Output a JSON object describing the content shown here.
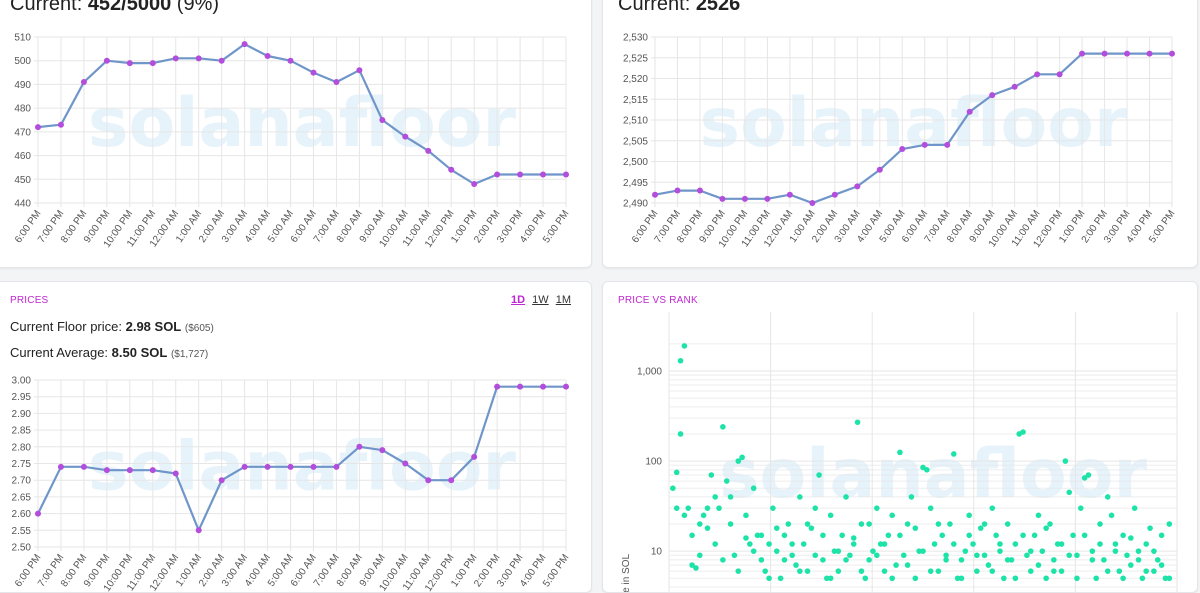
{
  "cards": {
    "listed": {
      "current_label": "Current:",
      "current_value": "452/5000",
      "current_extra": "(9%)"
    },
    "holders": {
      "current_label": "Current:",
      "current_value": "2526"
    },
    "prices": {
      "section_label": "PRICES",
      "range_tabs": [
        "1D",
        "1W",
        "1M"
      ],
      "active_range": "1D",
      "floor_label": "Current Floor price:",
      "floor_value": "2.98 SOL",
      "floor_usd": "($605)",
      "avg_label": "Current Average:",
      "avg_value": "8.50 SOL",
      "avg_usd": "($1,727)"
    },
    "rank": {
      "section_label": "PRICE VS RANK",
      "ylabel": "Price in SOL"
    }
  },
  "watermark": "solanafloor",
  "colors": {
    "line": "#6f95c9",
    "point": "#b34ddb",
    "scatter": "#1ee3a8",
    "accent": "#c026d3"
  },
  "chart_data": [
    {
      "type": "line",
      "x": [
        "6:00 PM",
        "7:00 PM",
        "8:00 PM",
        "9:00 PM",
        "10:00 PM",
        "11:00 PM",
        "12:00 AM",
        "1:00 AM",
        "2:00 AM",
        "3:00 AM",
        "4:00 AM",
        "5:00 AM",
        "6:00 AM",
        "7:00 AM",
        "8:00 AM",
        "9:00 AM",
        "10:00 AM",
        "11:00 AM",
        "12:00 PM",
        "1:00 PM",
        "2:00 PM",
        "3:00 PM",
        "4:00 PM",
        "5:00 PM"
      ],
      "values": [
        472,
        473,
        491,
        500,
        499,
        499,
        501,
        501,
        500,
        507,
        502,
        500,
        495,
        491,
        496,
        475,
        468,
        462,
        454,
        448,
        452,
        452,
        452,
        452
      ],
      "ylim": [
        440,
        510
      ],
      "yticks": [
        "440",
        "450",
        "460",
        "470",
        "480",
        "490",
        "500",
        "510"
      ],
      "grid": true
    },
    {
      "type": "line",
      "x": [
        "6:00 PM",
        "7:00 PM",
        "8:00 PM",
        "9:00 PM",
        "10:00 PM",
        "11:00 PM",
        "12:00 AM",
        "1:00 AM",
        "2:00 AM",
        "3:00 AM",
        "4:00 AM",
        "5:00 AM",
        "6:00 AM",
        "7:00 AM",
        "8:00 AM",
        "9:00 AM",
        "10:00 AM",
        "11:00 AM",
        "12:00 PM",
        "1:00 PM",
        "2:00 PM",
        "3:00 PM",
        "4:00 PM",
        "5:00 PM"
      ],
      "values": [
        2492,
        2493,
        2493,
        2491,
        2491,
        2491,
        2492,
        2490,
        2492,
        2494,
        2498,
        2503,
        2504,
        2504,
        2512,
        2516,
        2518,
        2521,
        2521,
        2526,
        2526,
        2526,
        2526,
        2526
      ],
      "ylim": [
        2490,
        2530
      ],
      "yticks": [
        "2,490",
        "2,495",
        "2,500",
        "2,505",
        "2,510",
        "2,515",
        "2,520",
        "2,525",
        "2,530"
      ],
      "grid": true
    },
    {
      "type": "line",
      "x": [
        "6:00 PM",
        "7:00 PM",
        "8:00 PM",
        "9:00 PM",
        "10:00 PM",
        "11:00 PM",
        "12:00 AM",
        "1:00 AM",
        "2:00 AM",
        "3:00 AM",
        "4:00 AM",
        "5:00 AM",
        "6:00 AM",
        "7:00 AM",
        "8:00 AM",
        "9:00 AM",
        "10:00 AM",
        "11:00 AM",
        "12:00 PM",
        "1:00 PM",
        "2:00 PM",
        "3:00 PM",
        "4:00 PM",
        "5:00 PM"
      ],
      "values": [
        2.6,
        2.74,
        2.74,
        2.73,
        2.73,
        2.73,
        2.72,
        2.55,
        2.7,
        2.74,
        2.74,
        2.74,
        2.74,
        2.74,
        2.8,
        2.79,
        2.75,
        2.7,
        2.7,
        2.77,
        2.98,
        2.98,
        2.98,
        2.98
      ],
      "ylim": [
        2.5,
        3.0
      ],
      "yticks": [
        "2.50",
        "2.55",
        "2.60",
        "2.65",
        "2.70",
        "2.75",
        "2.80",
        "2.85",
        "2.90",
        "2.95",
        "3.00"
      ],
      "grid": true
    },
    {
      "type": "scatter",
      "ylabel": "Price in SOL",
      "yscale": "log",
      "yticks": [
        "10",
        "100",
        "1,000"
      ],
      "points": [
        [
          3,
          1300
        ],
        [
          4,
          1900
        ],
        [
          3,
          200
        ],
        [
          2,
          75
        ],
        [
          5,
          30
        ],
        [
          8,
          20
        ],
        [
          9,
          25
        ],
        [
          11,
          70
        ],
        [
          12,
          40
        ],
        [
          13,
          30
        ],
        [
          14,
          240
        ],
        [
          18,
          100
        ],
        [
          19,
          110
        ],
        [
          15,
          60
        ],
        [
          16,
          40
        ],
        [
          6,
          7
        ],
        [
          7,
          6.5
        ],
        [
          17,
          9
        ],
        [
          20,
          14
        ],
        [
          21,
          12
        ],
        [
          10,
          18
        ],
        [
          22,
          50
        ],
        [
          23,
          15
        ],
        [
          24,
          8
        ],
        [
          25,
          6
        ],
        [
          26,
          12
        ],
        [
          27,
          30
        ],
        [
          28,
          10
        ],
        [
          29,
          5
        ],
        [
          30,
          15
        ],
        [
          31,
          20
        ],
        [
          32,
          9
        ],
        [
          33,
          7
        ],
        [
          34,
          40
        ],
        [
          35,
          12
        ],
        [
          36,
          6
        ],
        [
          37,
          18
        ],
        [
          38,
          30
        ],
        [
          39,
          70
        ],
        [
          40,
          8
        ],
        [
          41,
          5
        ],
        [
          42,
          25
        ],
        [
          43,
          10
        ],
        [
          44,
          6
        ],
        [
          45,
          15
        ],
        [
          46,
          40
        ],
        [
          47,
          9
        ],
        [
          48,
          12
        ],
        [
          49,
          270
        ],
        [
          50,
          20
        ],
        [
          51,
          5
        ],
        [
          52,
          8
        ],
        [
          53,
          10
        ],
        [
          54,
          30
        ],
        [
          55,
          12
        ],
        [
          56,
          6
        ],
        [
          57,
          15
        ],
        [
          58,
          25
        ],
        [
          59,
          7
        ],
        [
          60,
          125
        ],
        [
          61,
          9
        ],
        [
          62,
          20
        ],
        [
          63,
          40
        ],
        [
          64,
          5
        ],
        [
          65,
          10
        ],
        [
          66,
          85
        ],
        [
          67,
          80
        ],
        [
          68,
          30
        ],
        [
          69,
          12
        ],
        [
          70,
          6
        ],
        [
          71,
          15
        ],
        [
          72,
          9
        ],
        [
          73,
          20
        ],
        [
          74,
          120
        ],
        [
          75,
          5
        ],
        [
          76,
          8
        ],
        [
          77,
          10
        ],
        [
          78,
          25
        ],
        [
          79,
          12
        ],
        [
          80,
          6
        ],
        [
          81,
          18
        ],
        [
          82,
          9
        ],
        [
          83,
          7
        ],
        [
          84,
          30
        ],
        [
          85,
          15
        ],
        [
          86,
          10
        ],
        [
          87,
          5
        ],
        [
          88,
          20
        ],
        [
          89,
          8
        ],
        [
          90,
          12
        ],
        [
          91,
          200
        ],
        [
          92,
          210
        ],
        [
          93,
          9
        ],
        [
          94,
          6
        ],
        [
          95,
          15
        ],
        [
          96,
          25
        ],
        [
          97,
          10
        ],
        [
          98,
          5
        ],
        [
          99,
          20
        ],
        [
          100,
          8
        ],
        [
          101,
          12
        ],
        [
          102,
          6
        ],
        [
          103,
          100
        ],
        [
          104,
          45
        ],
        [
          105,
          15
        ],
        [
          106,
          9
        ],
        [
          107,
          30
        ],
        [
          108,
          65
        ],
        [
          109,
          70
        ],
        [
          110,
          10
        ],
        [
          111,
          5
        ],
        [
          112,
          20
        ],
        [
          113,
          8
        ],
        [
          114,
          40
        ],
        [
          115,
          25
        ],
        [
          116,
          12
        ],
        [
          117,
          6
        ],
        [
          118,
          15
        ],
        [
          119,
          9
        ],
        [
          120,
          7
        ],
        [
          121,
          30
        ],
        [
          122,
          10
        ],
        [
          123,
          5
        ],
        [
          124,
          12
        ],
        [
          125,
          18
        ],
        [
          126,
          6
        ],
        [
          127,
          8
        ],
        [
          128,
          15
        ],
        [
          129,
          5
        ],
        [
          130,
          20
        ],
        [
          1,
          50
        ],
        [
          2,
          30
        ],
        [
          4,
          25
        ],
        [
          6,
          15
        ],
        [
          8,
          9
        ],
        [
          10,
          30
        ],
        [
          12,
          12
        ],
        [
          14,
          8
        ],
        [
          16,
          20
        ],
        [
          18,
          6
        ],
        [
          20,
          25
        ],
        [
          22,
          10
        ],
        [
          24,
          15
        ],
        [
          26,
          5
        ],
        [
          28,
          18
        ],
        [
          30,
          8
        ],
        [
          32,
          12
        ],
        [
          34,
          6
        ],
        [
          36,
          20
        ],
        [
          38,
          9
        ],
        [
          40,
          15
        ],
        [
          42,
          5
        ],
        [
          44,
          10
        ],
        [
          46,
          8
        ],
        [
          48,
          14
        ],
        [
          50,
          6
        ],
        [
          52,
          20
        ],
        [
          54,
          9
        ],
        [
          56,
          12
        ],
        [
          58,
          5
        ],
        [
          60,
          15
        ],
        [
          62,
          7
        ],
        [
          64,
          18
        ],
        [
          66,
          10
        ],
        [
          68,
          6
        ],
        [
          70,
          20
        ],
        [
          72,
          8
        ],
        [
          74,
          12
        ],
        [
          76,
          5
        ],
        [
          78,
          15
        ],
        [
          80,
          9
        ],
        [
          82,
          20
        ],
        [
          84,
          6
        ],
        [
          86,
          12
        ],
        [
          88,
          8
        ],
        [
          90,
          5
        ],
        [
          92,
          15
        ],
        [
          94,
          10
        ],
        [
          96,
          7
        ],
        [
          98,
          18
        ],
        [
          100,
          6
        ],
        [
          102,
          12
        ],
        [
          104,
          9
        ],
        [
          106,
          5
        ],
        [
          108,
          15
        ],
        [
          110,
          8
        ],
        [
          112,
          12
        ],
        [
          114,
          6
        ],
        [
          116,
          10
        ],
        [
          118,
          5
        ],
        [
          120,
          14
        ],
        [
          122,
          8
        ],
        [
          124,
          6
        ],
        [
          126,
          10
        ],
        [
          128,
          7
        ],
        [
          130,
          5
        ]
      ],
      "grid": true
    }
  ]
}
